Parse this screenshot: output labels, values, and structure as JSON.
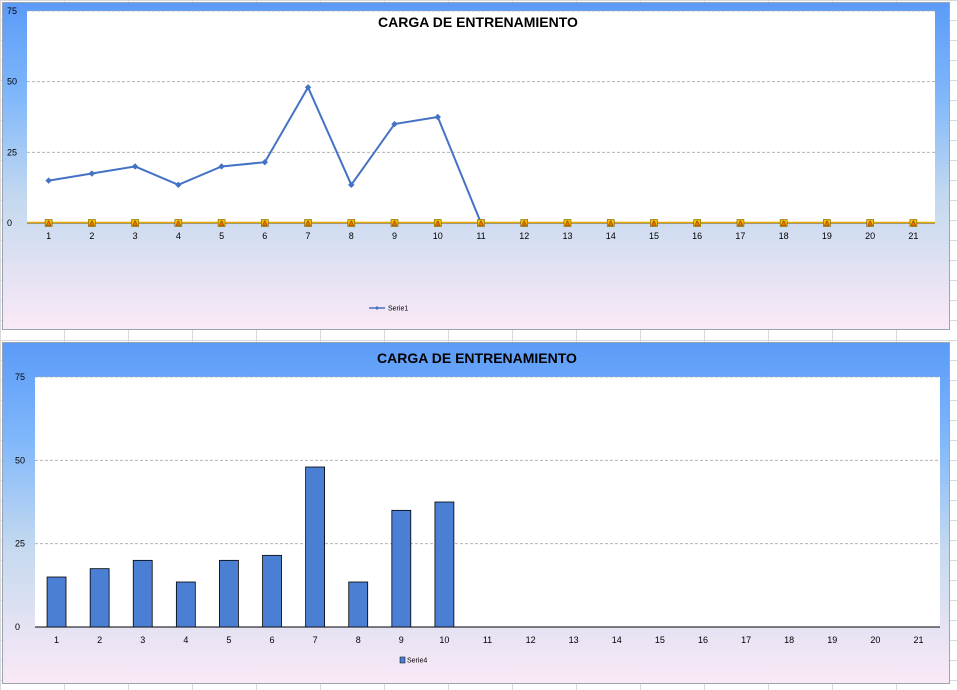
{
  "charts": [
    {
      "chart_data": {
        "type": "line",
        "title": "CARGA DE ENTRENAMIENTO",
        "xlabel": "",
        "ylabel": "",
        "categories": [
          "1",
          "2",
          "3",
          "4",
          "5",
          "6",
          "7",
          "8",
          "9",
          "10",
          "11",
          "12",
          "13",
          "14",
          "15",
          "16",
          "17",
          "18",
          "19",
          "20",
          "21"
        ],
        "yticks": [
          "0",
          "25",
          "50",
          "75"
        ],
        "ylim": [
          0,
          75
        ],
        "grid": true,
        "legend_position": "bottom",
        "series": [
          {
            "name": "Serie1",
            "color": "#4472c4",
            "values": [
              15,
              17.5,
              20,
              13.5,
              20,
              21.5,
              48,
              13.5,
              35,
              37.5,
              0,
              null,
              null,
              null,
              null,
              null,
              null,
              null,
              null,
              null,
              null
            ]
          },
          {
            "color": "#e5a800",
            "marker": "warning-icon",
            "values": [
              0,
              0,
              0,
              0,
              0,
              0,
              0,
              0,
              0,
              0,
              0,
              0,
              0,
              0,
              0,
              0,
              0,
              0,
              0,
              0,
              0
            ]
          }
        ]
      }
    },
    {
      "chart_data": {
        "type": "bar",
        "title": "CARGA DE ENTRENAMIENTO",
        "xlabel": "",
        "ylabel": "",
        "categories": [
          "1",
          "2",
          "3",
          "4",
          "5",
          "6",
          "7",
          "8",
          "9",
          "10",
          "11",
          "12",
          "13",
          "14",
          "15",
          "16",
          "17",
          "18",
          "19",
          "20",
          "21"
        ],
        "yticks": [
          "0",
          "25",
          "50",
          "75"
        ],
        "ylim": [
          0,
          75
        ],
        "grid": true,
        "legend_position": "bottom",
        "series": [
          {
            "name": "Serie4",
            "color": "#4a7fd4",
            "values": [
              15,
              17.5,
              20,
              13.5,
              20,
              21.5,
              48,
              13.5,
              35,
              37.5,
              null,
              null,
              null,
              null,
              null,
              null,
              null,
              null,
              null,
              null,
              null
            ]
          }
        ]
      }
    }
  ]
}
